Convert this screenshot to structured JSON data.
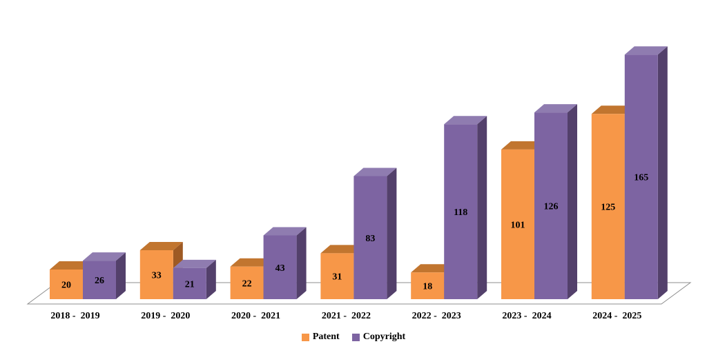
{
  "chart_data": {
    "type": "bar",
    "variant": "3d-clustered-column",
    "title": "",
    "xlabel": "",
    "ylabel": "",
    "categories": [
      "2018 -  2019",
      "2019 -  2020",
      "2020 -  2021",
      "2021 -  2022",
      "2022 -  2023",
      "2023 -  2024",
      "2024 -  2025"
    ],
    "series": [
      {
        "name": "Patent",
        "values": [
          20,
          33,
          22,
          31,
          18,
          101,
          125
        ],
        "color": "#F79748",
        "color_top": "#C1752F",
        "color_side": "#9E5A24"
      },
      {
        "name": "Copyright",
        "values": [
          26,
          21,
          43,
          83,
          118,
          126,
          165
        ],
        "color": "#7D64A2",
        "color_top": "#8F7CB0",
        "color_side": "#53406B"
      }
    ],
    "value_axis": {
      "min": 0,
      "max": 170,
      "visible": false
    },
    "grid": false,
    "legend_position": "bottom",
    "data_labels": "inside-center",
    "data_label_color": "#000000",
    "floor_edge_color": "#8C8C8C",
    "background": "#FFFFFF"
  }
}
